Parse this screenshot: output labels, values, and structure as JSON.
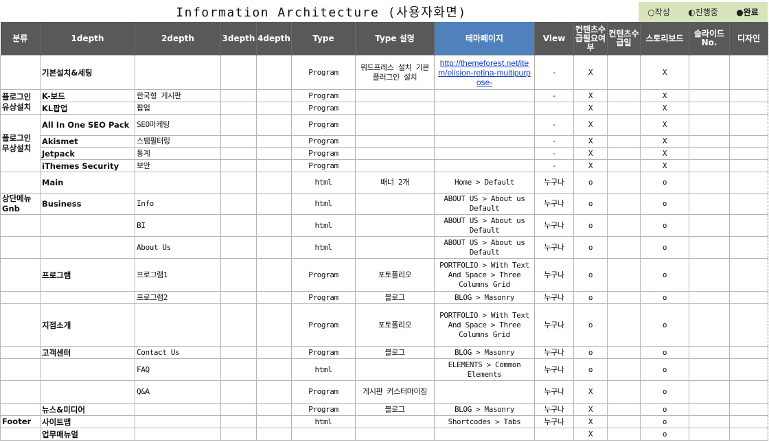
{
  "title": "Information Architecture (사용자화면)",
  "legend": {
    "draft": "○작성",
    "progress": "◐진행중",
    "done": "●완료"
  },
  "colors": {
    "header_bg": "#595959",
    "theme_header_bg": "#4f81bd",
    "legend_bg": "#d8e4bc",
    "link": "#1a3fd0"
  },
  "headers": [
    "분류",
    "1depth",
    "2depth",
    "3depth",
    "4depth",
    "Type",
    "Type 설명",
    "테마페이지",
    "View",
    "컨텐츠수급필요여부",
    "컨텐츠수급일",
    "스토리보드",
    "슬라이드No.",
    "디자인"
  ],
  "rows": [
    {
      "cat": "",
      "d1": "기본설치&세팅",
      "d2": "",
      "d3": "",
      "d4": "",
      "type": "Program",
      "desc": "워드프레스 설치 기본 플러그인 설치",
      "theme": "http://themeforest.net/item/elision-retina-multipurpose-",
      "view": "-",
      "need": "X",
      "date": "",
      "story": "X",
      "slide": "",
      "design": ""
    },
    {
      "cat": "플로그인 유상설치",
      "d1": "K-보드",
      "d2": "한국형 게시판",
      "d3": "",
      "d4": "",
      "type": "Program",
      "desc": "",
      "theme": "",
      "view": "-",
      "need": "X",
      "date": "",
      "story": "X",
      "slide": "",
      "design": ""
    },
    {
      "d1": "KL팝업",
      "d2": "팝업",
      "d3": "",
      "d4": "",
      "type": "Program",
      "desc": "",
      "theme": "",
      "view": "",
      "need": "X",
      "date": "",
      "story": "X",
      "slide": "",
      "design": ""
    },
    {
      "cat": "플로그인 무상설치",
      "d1": "All In One SEO Pack",
      "d2": "SEO마케팅",
      "d3": "",
      "d4": "",
      "type": "Program",
      "desc": "",
      "theme": "",
      "view": "-",
      "need": "X",
      "date": "",
      "story": "X",
      "slide": "",
      "design": ""
    },
    {
      "d1": "Akismet",
      "d2": "스팸필터링",
      "d3": "",
      "d4": "",
      "type": "Program",
      "desc": "",
      "theme": "",
      "view": "-",
      "need": "X",
      "date": "",
      "story": "X",
      "slide": "",
      "design": ""
    },
    {
      "d1": "Jetpack",
      "d2": "통계",
      "d3": "",
      "d4": "",
      "type": "Program",
      "desc": "",
      "theme": "",
      "view": "-",
      "need": "X",
      "date": "",
      "story": "X",
      "slide": "",
      "design": ""
    },
    {
      "d1": "iThemes Security",
      "d2": "보안",
      "d3": "",
      "d4": "",
      "type": "Program",
      "desc": "",
      "theme": "",
      "view": "-",
      "need": "X",
      "date": "",
      "story": "X",
      "slide": "",
      "design": ""
    },
    {
      "cat": "",
      "d1": "Main",
      "d2": "",
      "d3": "",
      "d4": "",
      "type": "html",
      "desc": "배너 2개",
      "theme": "Home > Default",
      "view": "누구나",
      "need": "o",
      "date": "",
      "story": "o",
      "slide": "",
      "design": ""
    },
    {
      "cat": "상단메뉴 Gnb",
      "d1": "Business",
      "d2": "Info",
      "d3": "",
      "d4": "",
      "type": "html",
      "desc": "",
      "theme": "ABOUT US > About us Default",
      "view": "누구나",
      "need": "o",
      "date": "",
      "story": "o",
      "slide": "",
      "design": ""
    },
    {
      "cat": "",
      "d1": "",
      "d2": "BI",
      "d3": "",
      "d4": "",
      "type": "html",
      "desc": "",
      "theme": "ABOUT US > About us Default",
      "view": "누구나",
      "need": "o",
      "date": "",
      "story": "o",
      "slide": "",
      "design": ""
    },
    {
      "cat": "",
      "d1": "",
      "d2": "About Us",
      "d3": "",
      "d4": "",
      "type": "html",
      "desc": "",
      "theme": "ABOUT US > About us Default",
      "view": "누구나",
      "need": "o",
      "date": "",
      "story": "o",
      "slide": "",
      "design": ""
    },
    {
      "cat": "",
      "d1": "프로그램",
      "d2": "프로그램1",
      "d3": "",
      "d4": "",
      "type": "Program",
      "desc": "포토폴리오",
      "theme": "PORTFOLIO > With Text And Space > Three Columns Grid",
      "view": "누구나",
      "need": "o",
      "date": "",
      "story": "o",
      "slide": "",
      "design": ""
    },
    {
      "cat": "",
      "d1": "",
      "d2": "프로그램2",
      "d3": "",
      "d4": "",
      "type": "Program",
      "desc": "블로그",
      "theme": "BLOG > Masonry",
      "view": "누구나",
      "need": "o",
      "date": "",
      "story": "o",
      "slide": "",
      "design": ""
    },
    {
      "cat": "",
      "d1": "지점소개",
      "d2": "",
      "d3": "",
      "d4": "",
      "type": "Program",
      "desc": "포토폴리오",
      "theme": "PORTFOLIO > With Text And Space > Three Columns Grid",
      "view": "누구나",
      "need": "o",
      "date": "",
      "story": "o",
      "slide": "",
      "design": ""
    },
    {
      "cat": "",
      "d1": "고객센터",
      "d2": "Contact Us",
      "d3": "",
      "d4": "",
      "type": "Program",
      "desc": "블로그",
      "theme": "BLOG > Masonry",
      "view": "누구나",
      "need": "o",
      "date": "",
      "story": "o",
      "slide": "",
      "design": ""
    },
    {
      "cat": "",
      "d1": "",
      "d2": "FAQ",
      "d3": "",
      "d4": "",
      "type": "html",
      "desc": "",
      "theme": "ELEMENTS > Common Elements",
      "view": "누구나",
      "need": "o",
      "date": "",
      "story": "o",
      "slide": "",
      "design": ""
    },
    {
      "cat": "",
      "d1": "",
      "d2": "Q&A",
      "d3": "",
      "d4": "",
      "type": "Program",
      "desc": "게시판 커스터마이징",
      "theme": "",
      "view": "누구나",
      "need": "X",
      "date": "",
      "story": "o",
      "slide": "",
      "design": ""
    },
    {
      "cat": "",
      "d1": "뉴스&미디어",
      "d2": "",
      "d3": "",
      "d4": "",
      "type": "Program",
      "desc": "블로그",
      "theme": "BLOG > Masonry",
      "view": "누구나",
      "need": "X",
      "date": "",
      "story": "o",
      "slide": "",
      "design": ""
    },
    {
      "cat": "Footer",
      "d1": "사이트맵",
      "d2": "",
      "d3": "",
      "d4": "",
      "type": "html",
      "desc": "",
      "theme": "Shortcodes > Tabs",
      "view": "누구나",
      "need": "X",
      "date": "",
      "story": "o",
      "slide": "",
      "design": ""
    },
    {
      "cat": "",
      "d1": "업무매뉴얼",
      "d2": "",
      "d3": "",
      "d4": "",
      "type": "",
      "desc": "",
      "theme": "",
      "view": "",
      "need": "X",
      "date": "",
      "story": "o",
      "slide": "",
      "design": ""
    }
  ]
}
